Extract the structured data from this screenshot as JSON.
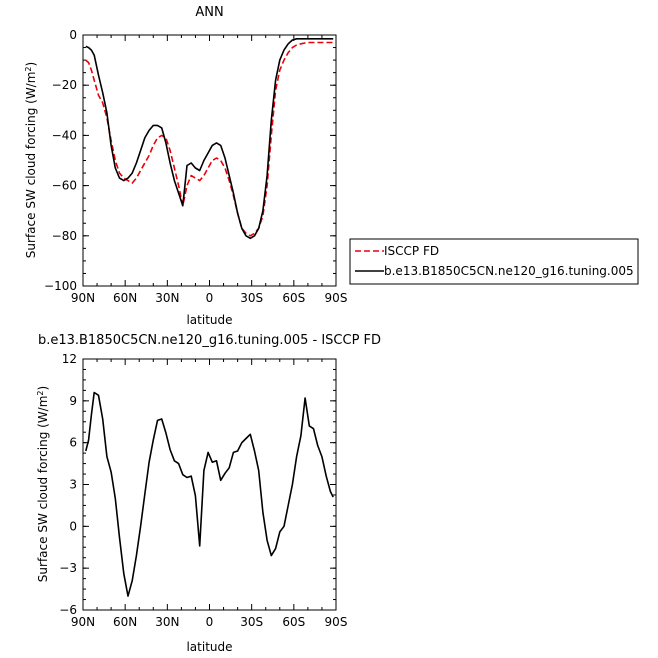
{
  "chart_data": [
    {
      "type": "line",
      "title": "ANN",
      "xlabel": "latitude",
      "ylabel": "Surface SW cloud forcing (W/m",
      "ylabel_sup": "2",
      "ylabel_tail": ")",
      "xlim": [
        90,
        -90
      ],
      "ylim": [
        -100,
        0
      ],
      "x_ticks": [
        {
          "value": 90,
          "label": "90N"
        },
        {
          "value": 60,
          "label": "60N"
        },
        {
          "value": 30,
          "label": "30N"
        },
        {
          "value": 0,
          "label": "0"
        },
        {
          "value": -30,
          "label": "30S"
        },
        {
          "value": -60,
          "label": "60S"
        },
        {
          "value": -90,
          "label": "90S"
        }
      ],
      "y_ticks": [
        0,
        -20,
        -40,
        -60,
        -80,
        -100
      ],
      "grid": false,
      "legend": "right",
      "series": [
        {
          "name": "ISCCP FD",
          "color": "#e8000b",
          "dash": "dashed",
          "x": [
            88,
            86,
            84,
            82,
            79,
            76,
            73,
            70,
            67,
            64,
            61,
            58,
            55,
            52,
            49,
            46,
            43,
            40,
            37,
            34,
            31,
            28,
            25,
            22,
            19,
            16,
            13,
            10,
            7,
            4,
            1,
            -2,
            -5,
            -8,
            -11,
            -14,
            -17,
            -20,
            -23,
            -26,
            -29,
            -32,
            -35,
            -38,
            -41,
            -44,
            -47,
            -50,
            -53,
            -56,
            -59,
            -62,
            -65,
            -68,
            -71,
            -74,
            -77,
            -80,
            -83,
            -86,
            -88
          ],
          "y": [
            -10,
            -11,
            -14,
            -18,
            -24,
            -27,
            -33,
            -42,
            -50,
            -55,
            -57,
            -58,
            -59,
            -57,
            -54,
            -51,
            -48,
            -44,
            -41,
            -40,
            -41,
            -46,
            -53,
            -60,
            -68,
            -60,
            -56,
            -57,
            -58,
            -56,
            -53,
            -50,
            -49,
            -50,
            -53,
            -58,
            -64,
            -71,
            -77,
            -79,
            -80,
            -79,
            -77,
            -72,
            -60,
            -40,
            -22,
            -14,
            -10,
            -7,
            -5,
            -4,
            -3.5,
            -3.2,
            -3,
            -3,
            -3,
            -3,
            -3,
            -3,
            -3
          ]
        },
        {
          "name": "b.e13.B1850C5CN.ne120_g16.tuning.005",
          "color": "#000000",
          "dash": "solid",
          "x": [
            88,
            86,
            84,
            82,
            79,
            76,
            73,
            70,
            67,
            64,
            61,
            58,
            55,
            52,
            49,
            46,
            43,
            40,
            37,
            34,
            31,
            28,
            25,
            22,
            19,
            16,
            13,
            10,
            7,
            4,
            1,
            -2,
            -5,
            -8,
            -11,
            -14,
            -17,
            -20,
            -23,
            -26,
            -29,
            -32,
            -35,
            -38,
            -41,
            -44,
            -47,
            -50,
            -53,
            -56,
            -59,
            -62,
            -65,
            -68,
            -71,
            -74,
            -77,
            -80,
            -83,
            -86,
            -88
          ],
          "y": [
            -4.5,
            -5,
            -6,
            -8,
            -16,
            -23,
            -31,
            -44,
            -53,
            -57,
            -58,
            -57,
            -55,
            -51,
            -46,
            -41,
            -38,
            -36,
            -36,
            -37,
            -43,
            -51,
            -58,
            -63,
            -68,
            -52,
            -51,
            -53,
            -54,
            -50,
            -47,
            -44,
            -43,
            -44,
            -49,
            -56,
            -63,
            -71,
            -77,
            -80,
            -81,
            -80,
            -77,
            -70,
            -56,
            -34,
            -18,
            -10,
            -6,
            -3.5,
            -2,
            -1.5,
            -1.5,
            -1.5,
            -1.5,
            -1.5,
            -1.5,
            -1.5,
            -1.5,
            -1.5,
            -1.5
          ]
        }
      ]
    },
    {
      "type": "line",
      "title": "b.e13.B1850C5CN.ne120_g16.tuning.005 - ISCCP FD",
      "xlabel": "latitude",
      "ylabel": "Surface SW cloud forcing (W/m",
      "ylabel_sup": "2",
      "ylabel_tail": ")",
      "xlim": [
        90,
        -90
      ],
      "ylim": [
        -6,
        12
      ],
      "x_ticks": [
        {
          "value": 90,
          "label": "90N"
        },
        {
          "value": 60,
          "label": "60N"
        },
        {
          "value": 30,
          "label": "30N"
        },
        {
          "value": 0,
          "label": "0"
        },
        {
          "value": -30,
          "label": "30S"
        },
        {
          "value": -60,
          "label": "60S"
        },
        {
          "value": -90,
          "label": "90S"
        }
      ],
      "y_ticks": [
        12,
        9,
        6,
        3,
        0,
        -3,
        -6
      ],
      "grid": false,
      "series": [
        {
          "name": "",
          "color": "#000000",
          "dash": "solid",
          "x": [
            88,
            86,
            84,
            82,
            79,
            76,
            73,
            70,
            67,
            64,
            61,
            58,
            55,
            52,
            49,
            46,
            43,
            40,
            37,
            34,
            31,
            28,
            25,
            22,
            19,
            16,
            13,
            10,
            7,
            4,
            1,
            -2,
            -5,
            -8,
            -11,
            -14,
            -17,
            -20,
            -23,
            -26,
            -29,
            -32,
            -35,
            -38,
            -41,
            -44,
            -47,
            -50,
            -53,
            -56,
            -59,
            -62,
            -65,
            -68,
            -71,
            -74,
            -77,
            -80,
            -83,
            -86,
            -88
          ],
          "y": [
            5.4,
            6.2,
            8.0,
            9.6,
            9.4,
            7.7,
            5.0,
            3.9,
            2.0,
            -0.8,
            -3.4,
            -5.0,
            -3.9,
            -2.1,
            0.0,
            2.3,
            4.6,
            6.2,
            7.6,
            7.7,
            6.7,
            5.5,
            4.7,
            4.5,
            3.7,
            3.5,
            3.6,
            2.2,
            -1.4,
            4.0,
            5.3,
            4.6,
            4.7,
            3.3,
            3.8,
            4.2,
            5.3,
            5.4,
            6.0,
            6.3,
            6.6,
            5.4,
            4.0,
            1.0,
            -1.0,
            -2.1,
            -1.6,
            -0.4,
            0.0,
            1.5,
            3.0,
            5.0,
            6.5,
            9.2,
            7.2,
            7.0,
            5.8,
            5.0,
            3.6,
            2.5,
            2.1
          ]
        }
      ]
    }
  ]
}
